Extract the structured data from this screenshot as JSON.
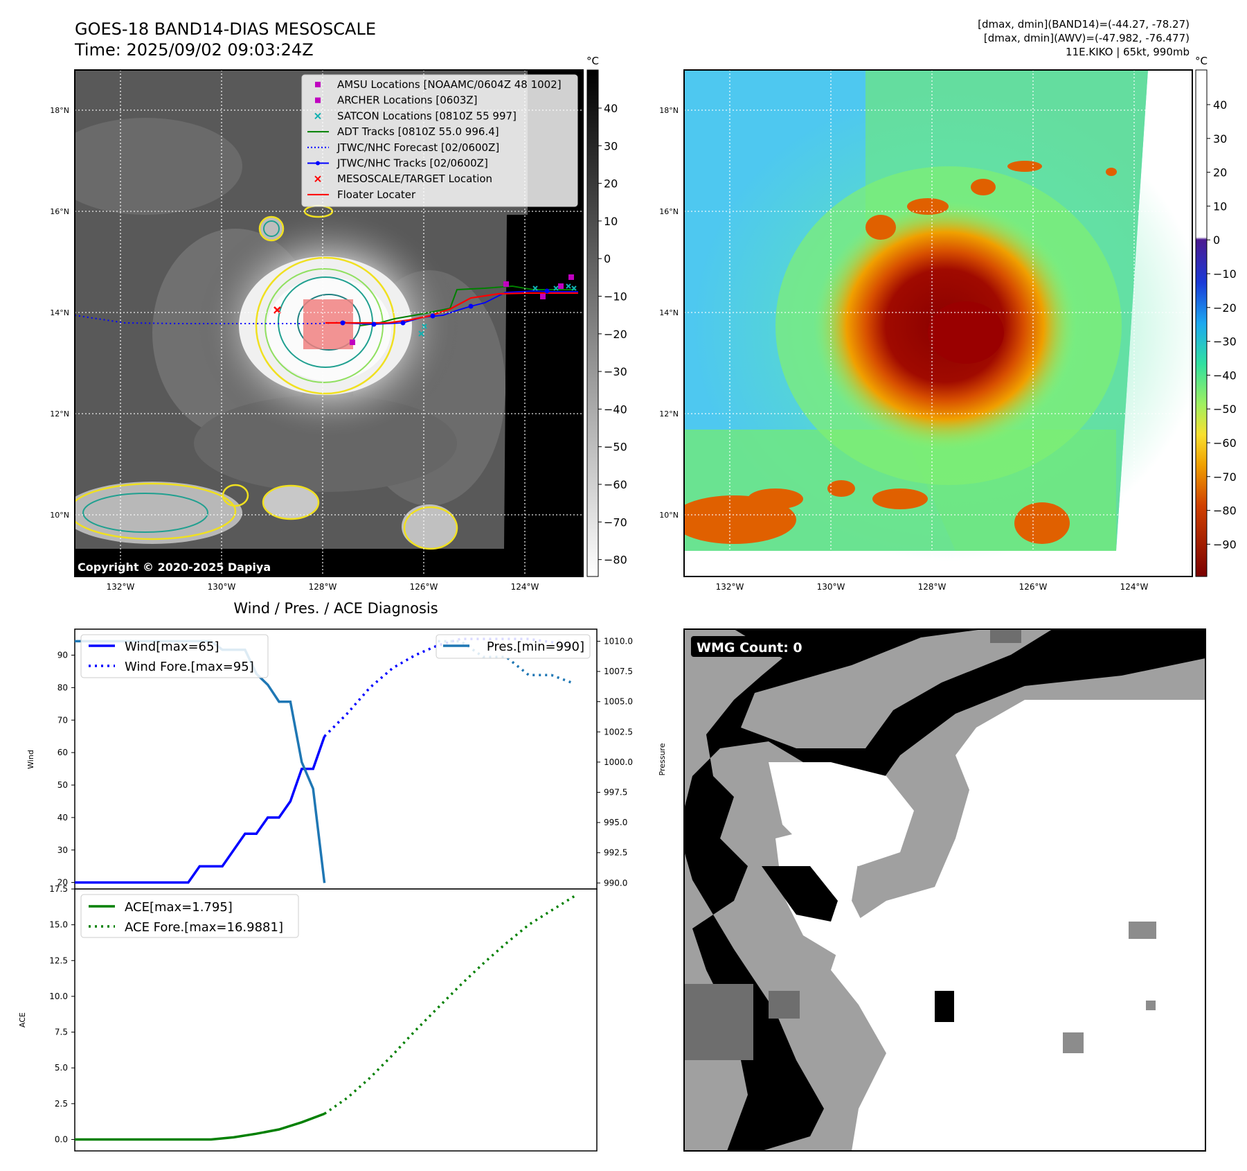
{
  "header": {
    "title_line1": "GOES-18 BAND14-DIAS MESOSCALE",
    "title_line2": "Time: 2025/09/02 09:03:24Z",
    "info_line1": "[dmax, dmin](BAND14)=(-44.27, -78.27)",
    "info_line2": "[dmax, dmin](AWV)=(-47.982, -76.477)",
    "info_line3": "11E.KIKO | 65kt, 990mb"
  },
  "map_axes": {
    "lat_ticks": [
      "18°N",
      "16°N",
      "14°N",
      "12°N",
      "10°N"
    ],
    "lon_ticks": [
      "132°W",
      "130°W",
      "128°W",
      "126°W",
      "124°W"
    ]
  },
  "ir_panel": {
    "copyright": "Copyright © 2020-2025 Dapiya",
    "colorbar_unit": "°C",
    "colorbar_ticks": [
      "40",
      "30",
      "20",
      "10",
      "0",
      "−10",
      "−20",
      "−30",
      "−40",
      "−50",
      "−60",
      "−70",
      "−80"
    ],
    "legend": [
      {
        "label": "AMSU Locations [NOAAMC/0604Z 48 1002]",
        "symbol": "square",
        "color": "#c000c0"
      },
      {
        "label": "ARCHER Locations [0603Z]",
        "symbol": "square",
        "color": "#c000c0"
      },
      {
        "label": "SATCON Locations [0810Z 55 997]",
        "symbol": "x",
        "color": "#10b0b0"
      },
      {
        "label": "ADT Tracks [0810Z 55.0 996.4]",
        "symbol": "line",
        "color": "#008000"
      },
      {
        "label": "JTWC/NHC Forecast [02/0600Z]",
        "symbol": "dotted",
        "color": "#0000ff"
      },
      {
        "label": "JTWC/NHC Tracks [02/0600Z]",
        "symbol": "line-dot",
        "color": "#0000ff"
      },
      {
        "label": "MESOSCALE/TARGET Location",
        "symbol": "x",
        "color": "#ff0000"
      },
      {
        "label": "Floater Locater",
        "symbol": "line",
        "color": "#ff0000"
      }
    ]
  },
  "awv_panel": {
    "colorbar_unit": "°C",
    "colorbar_ticks": [
      "40",
      "30",
      "20",
      "10",
      "0",
      "−10",
      "−20",
      "−30",
      "−40",
      "−50",
      "−60",
      "−70",
      "−80",
      "−90"
    ]
  },
  "wmg_panel": {
    "label": "WMG Count: 0"
  },
  "chart_data": [
    {
      "type": "line",
      "title": "Wind / Pres. / ACE Diagnosis",
      "ylabel": "Wind",
      "ylabel_right": "Pressure",
      "ylim": [
        18,
        98
      ],
      "ylim_right": [
        989.5,
        1011.0
      ],
      "xlim": [
        0,
        46
      ],
      "yticks": [
        "90",
        "80",
        "70",
        "60",
        "50",
        "40",
        "30",
        "20"
      ],
      "yticks_right": [
        "1010.0",
        "1007.5",
        "1005.0",
        "1002.5",
        "1000.0",
        "997.5",
        "995.0",
        "992.5",
        "990.0"
      ],
      "legend_left": [
        "Wind[max=65]",
        "Wind Fore.[max=95]"
      ],
      "legend_right": [
        "Pres.[min=990]"
      ],
      "series": [
        {
          "name": "Wind[max=65]",
          "axis": "left",
          "style": "solid",
          "color": "#0000ff",
          "x": [
            0,
            1,
            2,
            3,
            4,
            5,
            6,
            7,
            8,
            9,
            10,
            11,
            12,
            13,
            14,
            15,
            16,
            17,
            18,
            19,
            20,
            21,
            22,
            23,
            24
          ],
          "values": [
            20,
            20,
            20,
            20,
            20,
            20,
            20,
            20,
            20,
            20,
            20,
            25,
            25,
            25,
            30,
            35,
            35,
            40,
            40,
            45,
            55,
            55,
            65,
            null,
            null
          ]
        },
        {
          "name": "Wind Fore.[max=95]",
          "axis": "left",
          "style": "dotted",
          "color": "#0000ff",
          "x": [
            22,
            24,
            26,
            28,
            30,
            32,
            34,
            36,
            38,
            40,
            42,
            44
          ],
          "values": [
            65,
            72,
            80,
            86,
            90,
            93,
            95,
            95,
            95,
            95,
            94,
            93
          ]
        },
        {
          "name": "Pres.[min=990]",
          "axis": "right",
          "style": "solid",
          "color": "#1f77b4",
          "x": [
            0,
            2,
            4,
            6,
            8,
            10,
            12,
            13,
            14,
            15,
            16,
            17,
            18,
            19,
            20,
            21,
            22
          ],
          "values": [
            1010,
            1010,
            1010,
            1010,
            1010,
            1010,
            1010,
            1009.3,
            1009.3,
            1009.3,
            1007.3,
            1006.4,
            1005.0,
            1005.0,
            1000.0,
            997.8,
            990.0
          ]
        },
        {
          "name": "",
          "axis": "right",
          "style": "dotted",
          "color": "#1f77b4",
          "x": [
            32,
            34,
            36,
            38,
            40,
            42,
            44
          ],
          "values": [
            1010.0,
            1010.0,
            1008.7,
            1008.7,
            1007.2,
            1007.2,
            1006.5
          ]
        }
      ]
    },
    {
      "type": "line",
      "ylabel": "ACE",
      "ylim": [
        -0.8,
        17.5
      ],
      "xlim": [
        0,
        46
      ],
      "yticks": [
        "17.5",
        "15.0",
        "12.5",
        "10.0",
        "7.5",
        "5.0",
        "2.5",
        "0.0"
      ],
      "legend": [
        "ACE[max=1.795]",
        "ACE Fore.[max=16.9881]"
      ],
      "series": [
        {
          "name": "ACE[max=1.795]",
          "style": "solid",
          "color": "#008000",
          "x": [
            0,
            2,
            4,
            6,
            8,
            10,
            12,
            14,
            16,
            18,
            20,
            22
          ],
          "values": [
            0,
            0,
            0,
            0,
            0,
            0,
            0,
            0.15,
            0.4,
            0.7,
            1.2,
            1.795
          ]
        },
        {
          "name": "ACE Fore.[max=16.9881]",
          "style": "dotted",
          "color": "#008000",
          "x": [
            22,
            24,
            26,
            28,
            30,
            32,
            34,
            36,
            38,
            40,
            42,
            44
          ],
          "values": [
            1.795,
            2.9,
            4.3,
            5.9,
            7.6,
            9.2,
            10.8,
            12.3,
            13.7,
            15.0,
            16.0,
            16.9881
          ]
        }
      ]
    }
  ]
}
